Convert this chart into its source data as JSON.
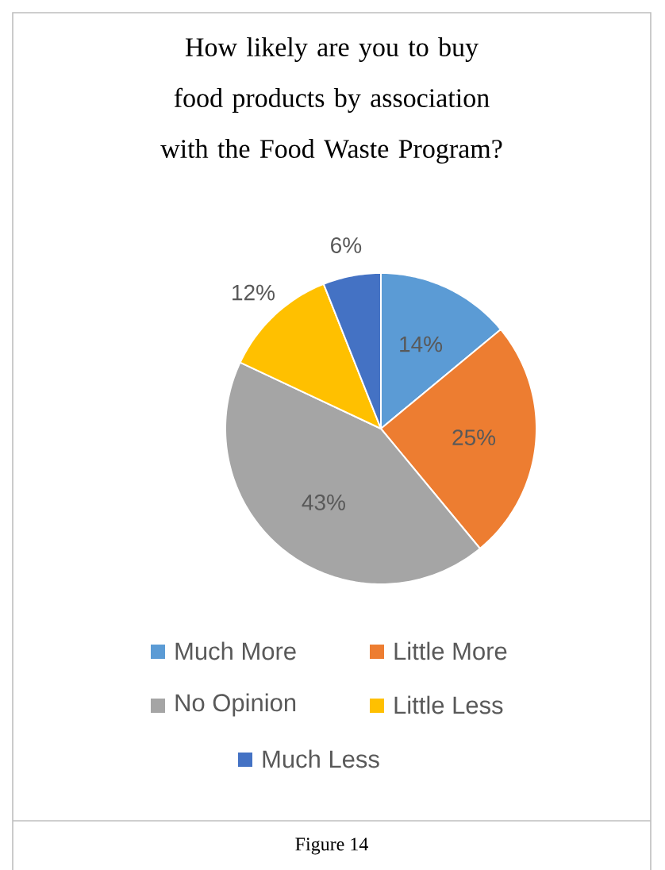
{
  "chart_data": {
    "type": "pie",
    "title": "How likely are you to buy food products by association with the Food Waste Program?",
    "categories": [
      "Much More",
      "Little More",
      "No Opinion",
      "Little Less",
      "Much Less"
    ],
    "values": [
      14,
      25,
      43,
      12,
      6
    ],
    "colors": [
      "#5b9bd5",
      "#ed7d31",
      "#a5a5a5",
      "#ffc000",
      "#4472c4"
    ],
    "value_labels": [
      "14%",
      "25%",
      "43%",
      "12%",
      "6%"
    ],
    "legend": "bottom",
    "annotations": [
      "Figure 14"
    ]
  }
}
